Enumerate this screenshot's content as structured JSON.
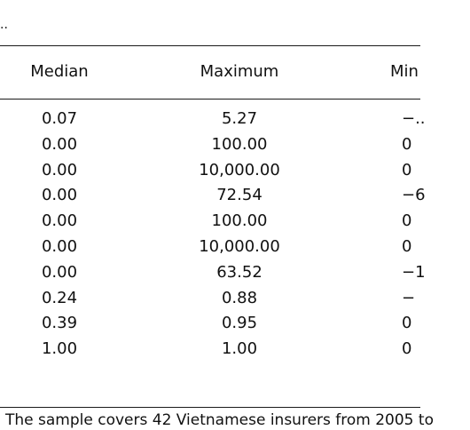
{
  "stub_text": "..",
  "headers": {
    "median": "Median",
    "maximum": "Maximum",
    "minimum": "Min"
  },
  "rows": [
    {
      "median": "0.07",
      "maximum": "5.27",
      "minimum": "−.."
    },
    {
      "median": "0.00",
      "maximum": "100.00",
      "minimum": "0"
    },
    {
      "median": "0.00",
      "maximum": "10,000.00",
      "minimum": "0"
    },
    {
      "median": "0.00",
      "maximum": "72.54",
      "minimum": "−6"
    },
    {
      "median": "0.00",
      "maximum": "100.00",
      "minimum": "0"
    },
    {
      "median": "0.00",
      "maximum": "10,000.00",
      "minimum": "0"
    },
    {
      "median": "0.00",
      "maximum": "63.52",
      "minimum": "−1"
    },
    {
      "median": "0.24",
      "maximum": "0.88",
      "minimum": "−"
    },
    {
      "median": "0.39",
      "maximum": "0.95",
      "minimum": "0"
    },
    {
      "median": "1.00",
      "maximum": "1.00",
      "minimum": "0"
    }
  ],
  "note": "The sample covers 42 Vietnamese insurers from 2005 to"
}
